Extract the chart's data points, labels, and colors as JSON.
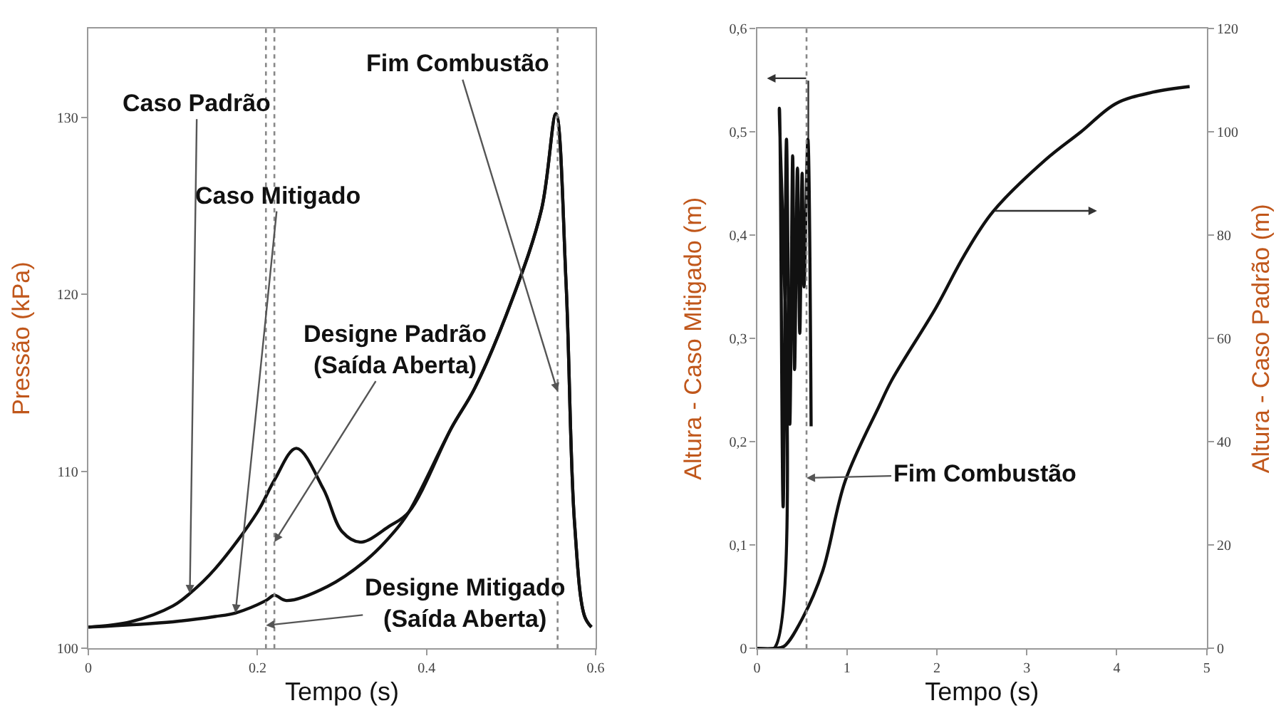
{
  "chart_data": [
    {
      "type": "line",
      "xlabel": "Tempo (s)",
      "ylabel": "Pressão (kPa)",
      "xlim": [
        0,
        0.6
      ],
      "ylim": [
        100,
        135
      ],
      "xticks": [
        0,
        0.2,
        0.4,
        0.6
      ],
      "yticks": [
        100,
        110,
        120,
        130
      ],
      "marker": "none",
      "line_style": "solid",
      "series": [
        {
          "color": "#111111",
          "x": [
            0,
            0.05,
            0.1,
            0.12,
            0.15,
            0.2,
            0.22,
            0.246,
            0.278,
            0.3,
            0.322,
            0.356,
            0.379,
            0.43,
            0.457,
            0.502,
            0.536,
            0.553,
            0.565,
            0.575,
            0.587,
            0.595
          ],
          "values": [
            101.2,
            101.5,
            102.4,
            103.1,
            104.5,
            107.7,
            109.5,
            111.3,
            109.0,
            106.6,
            106.0,
            106.9,
            107.7,
            112.5,
            114.7,
            119.8,
            124.8,
            130.2,
            120.6,
            107.1,
            101.8,
            101.2
          ]
        },
        {
          "color": "#111111",
          "x": [
            0,
            0.1,
            0.15,
            0.174,
            0.21,
            0.22,
            0.234,
            0.283,
            0.329,
            0.362,
            0.379,
            0.43,
            0.457,
            0.502,
            0.536,
            0.553,
            0.565,
            0.575,
            0.587,
            0.595
          ],
          "values": [
            101.2,
            101.5,
            101.8,
            102.0,
            102.7,
            103.0,
            102.7,
            103.5,
            105.0,
            106.6,
            107.7,
            112.5,
            114.7,
            119.8,
            124.8,
            130.2,
            120.6,
            107.1,
            101.8,
            101.2
          ]
        }
      ],
      "ref_lines": [
        {
          "axis": "x",
          "value": 0.21,
          "color": "#888888",
          "line_style": "dotted"
        },
        {
          "axis": "x",
          "value": 0.22,
          "color": "#888888",
          "line_style": "dotted"
        },
        {
          "axis": "x",
          "value": 0.555,
          "color": "#888888",
          "line_style": "dotted"
        }
      ],
      "annotations": [
        {
          "text": "Caso Padrão",
          "x": 0.12,
          "y": 103.1
        },
        {
          "text": "Caso Mitigado",
          "x": 0.174,
          "y": 102.0
        },
        {
          "text": "Designe Padrão\n(Saída Aberta)",
          "x": 0.22,
          "y": 106
        },
        {
          "text": "Designe Mitigado\n(Saída Aberta)",
          "x": 0.21,
          "y": 101.3
        },
        {
          "text": "Fim Combustão",
          "x": 0.555,
          "y": 114.5
        }
      ]
    },
    {
      "type": "line",
      "xlabel": "Tempo (s)",
      "ylabel": "Altura - Caso Mitigado (m)",
      "y2label": "Altura - Caso Padrão (m)",
      "xlim": [
        0,
        5
      ],
      "ylim": [
        0,
        0.6
      ],
      "y2lim": [
        0,
        120
      ],
      "xticks": [
        0,
        1,
        2,
        3,
        4,
        5
      ],
      "yticks": [
        0,
        {
          "value": 0.1,
          "label": "0,1"
        },
        {
          "value": 0.2,
          "label": "0,2"
        },
        {
          "value": 0.3,
          "label": "0,3"
        },
        {
          "value": 0.4,
          "label": "0,4"
        },
        {
          "value": 0.5,
          "label": "0,5"
        },
        {
          "value": 0.6,
          "label": "0,6"
        }
      ],
      "y2ticks": [
        0,
        20,
        40,
        60,
        80,
        100,
        120
      ],
      "marker": "none",
      "line_style": "solid",
      "series": [
        {
          "color": "#111111",
          "x": [
            0,
            0.19,
            0.248,
            0.29,
            0.327,
            0.364,
            0.396,
            0.417,
            0.449,
            0.475,
            0.501,
            0.522,
            0.565,
            0.601
          ],
          "values": [
            0,
            0,
            0.523,
            0.137,
            0.493,
            0.217,
            0.477,
            0.27,
            0.465,
            0.305,
            0.46,
            0.35,
            0.493,
            0.215
          ]
        },
        {
          "color": "#111111",
          "axis": "y2",
          "x": [
            0,
            0.195,
            0.3,
            0.51,
            0.73,
            0.98,
            1.36,
            1.5,
            1.99,
            2.3,
            2.62,
            3.2,
            3.6,
            3.99,
            4.4,
            4.81
          ],
          "values": [
            0,
            0,
            0.4,
            6.0,
            15,
            32.4,
            47,
            52,
            66,
            76,
            84.5,
            94.5,
            100,
            105.5,
            107.7,
            108.8
          ]
        }
      ],
      "ref_lines": [
        {
          "axis": "x",
          "value": 0.55,
          "color": "#888888",
          "line_style": "dotted"
        }
      ],
      "annotations": [
        {
          "text": "Fim Combustão",
          "x": 0.55,
          "y": 0.165
        }
      ]
    }
  ]
}
